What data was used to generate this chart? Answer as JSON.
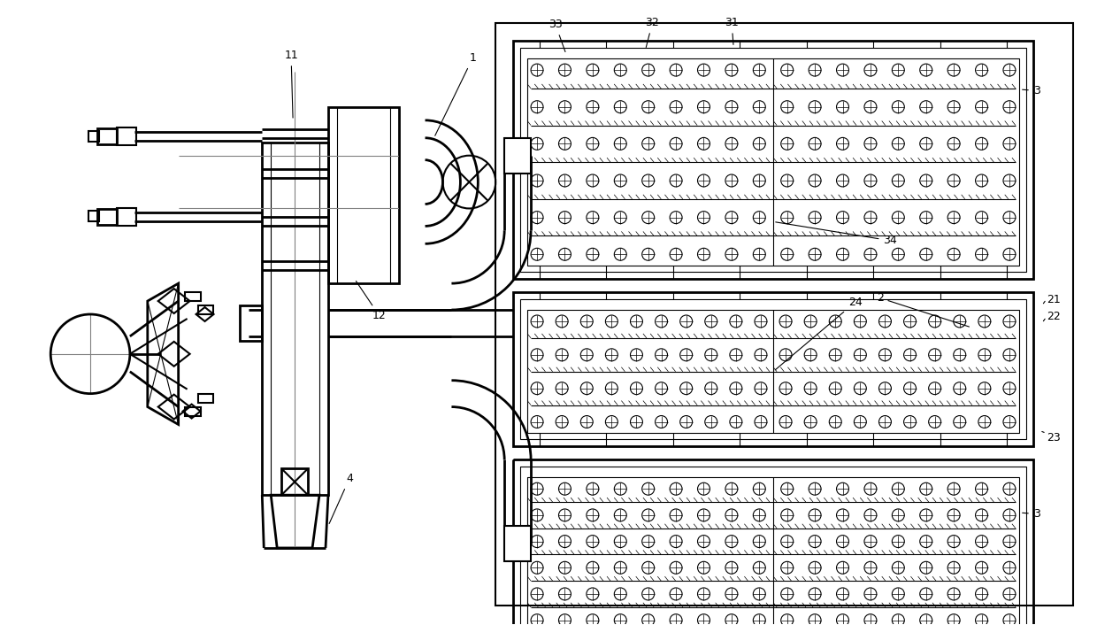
{
  "bg_color": "#ffffff",
  "lc": "#000000",
  "lw": 1.5,
  "tlw": 0.8,
  "mw": 2.0,
  "fig_w": 12.4,
  "fig_h": 7.06
}
